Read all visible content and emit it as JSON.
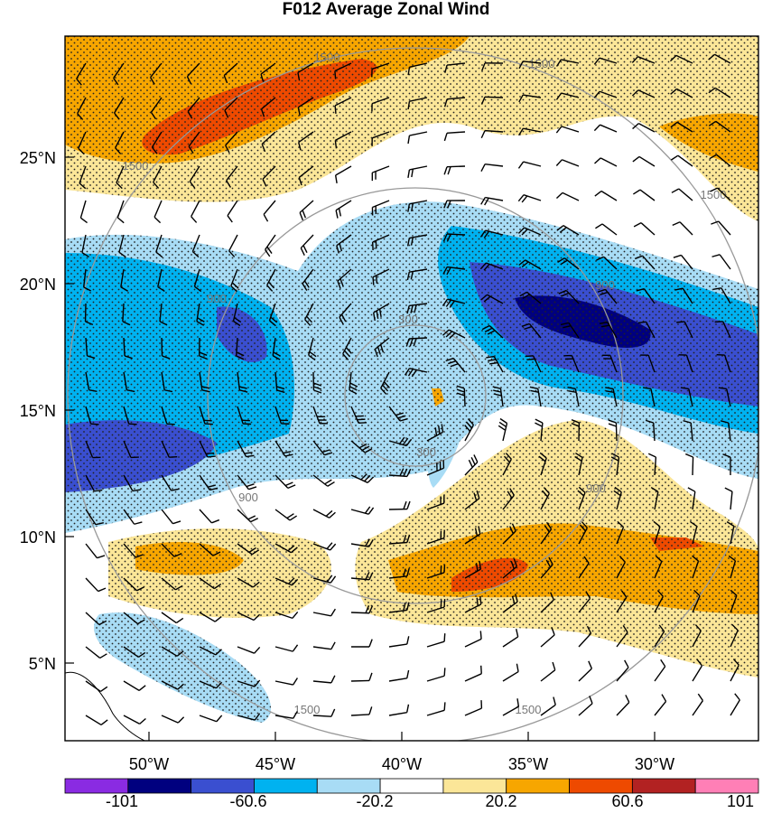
{
  "title": "F012 Average Zonal Wind",
  "map": {
    "lat_ticks": [
      "25°N",
      "20°N",
      "15°N",
      "10°N",
      "5°N"
    ],
    "lon_ticks": [
      "50°W",
      "45°W",
      "40°W",
      "35°W",
      "30°W"
    ],
    "range_rings": [
      "300",
      "900",
      "1500"
    ],
    "range_ring_labels": [
      {
        "text": "300",
        "ring": "300"
      },
      {
        "text": "300",
        "ring": "300"
      },
      {
        "text": "900",
        "ring": "900"
      },
      {
        "text": "900",
        "ring": "900"
      },
      {
        "text": "900",
        "ring": "900"
      },
      {
        "text": "900",
        "ring": "900"
      },
      {
        "text": "1500",
        "ring": "1500"
      },
      {
        "text": "1500",
        "ring": "1500"
      },
      {
        "text": "1500",
        "ring": "1500"
      },
      {
        "text": "1500",
        "ring": "1500"
      },
      {
        "text": "1500",
        "ring": "1500"
      },
      {
        "text": "1500",
        "ring": "1500"
      }
    ],
    "fill_colors": {
      "strong_easterly": "#00007f",
      "easterly": "#3a4fd0",
      "moderate_easterly": "#00b2f0",
      "weak_easterly": "#a8dcf5",
      "neutral": "#ffffff",
      "weak_westerly": "#fbe698",
      "moderate_westerly": "#f7a600",
      "westerly": "#ee4a00"
    }
  },
  "colorbar": {
    "labels": [
      "-101",
      "-60.6",
      "-20.2",
      "20.2",
      "60.6",
      "101"
    ],
    "colors": [
      "#8a2be2",
      "#00007f",
      "#3a4fd0",
      "#00b2f0",
      "#a8dcf5",
      "#ffffff",
      "#fbe698",
      "#f7a600",
      "#ee4a00",
      "#b22222",
      "#ff7fb6"
    ]
  }
}
